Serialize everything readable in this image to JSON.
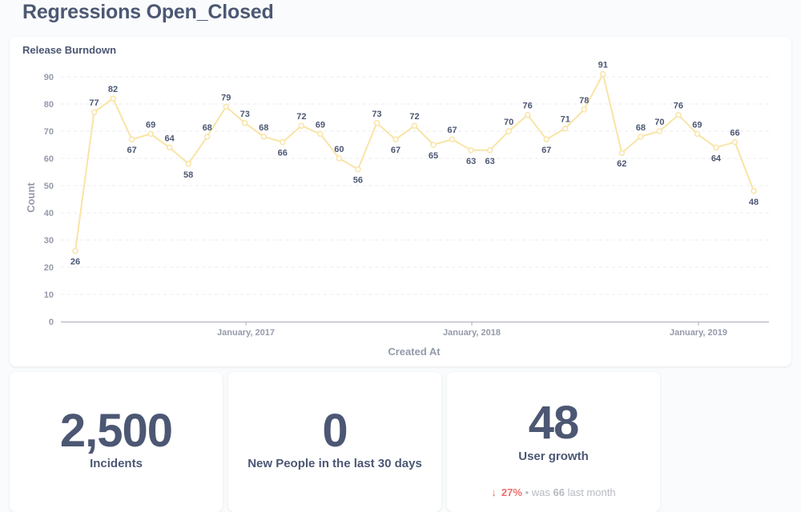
{
  "page": {
    "title": "Regressions Open_Closed"
  },
  "chart_card": {
    "title": "Release Burndown"
  },
  "chart_data": {
    "type": "line",
    "title": "Release Burndown",
    "xlabel": "Created At",
    "ylabel": "Count",
    "ylim": [
      0,
      90
    ],
    "yticks": [
      0,
      10,
      20,
      30,
      40,
      50,
      60,
      70,
      80,
      90
    ],
    "x_tick_labels": [
      "January, 2017",
      "January, 2018",
      "January, 2019"
    ],
    "grid": "horizontal dashed",
    "color": "#f9e4a6",
    "values": [
      26,
      77,
      82,
      67,
      69,
      64,
      58,
      68,
      79,
      73,
      68,
      66,
      72,
      69,
      60,
      56,
      73,
      67,
      72,
      65,
      67,
      63,
      63,
      70,
      76,
      67,
      71,
      78,
      91,
      62,
      68,
      70,
      76,
      69,
      64,
      66,
      48
    ]
  },
  "scalars": [
    {
      "value": "2,500",
      "label": "Incidents"
    },
    {
      "value": "0",
      "label": "New People in the last 30 days"
    },
    {
      "value": "48",
      "label": "User growth"
    }
  ],
  "trend": {
    "arrow": "↓",
    "change": "27%",
    "separator": "•",
    "was_text": "was",
    "previous_value": "66",
    "period": "last month",
    "color": "#ed6e6e"
  }
}
